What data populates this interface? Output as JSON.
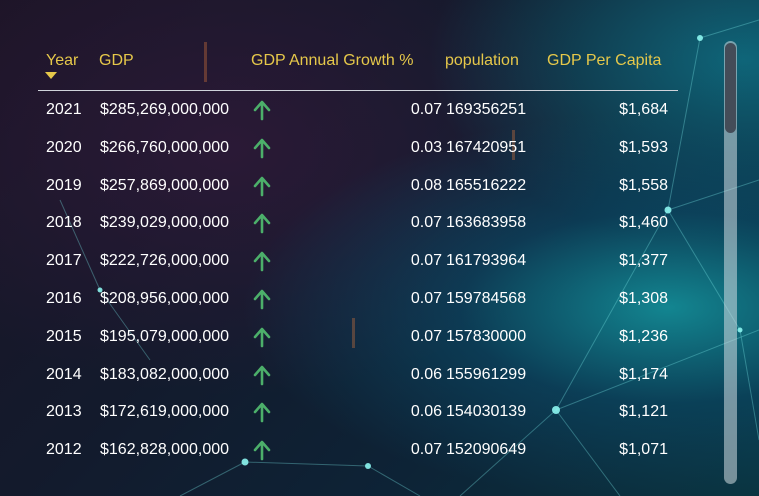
{
  "columns": {
    "year": "Year",
    "gdp": "GDP",
    "growth": "GDP Annual Growth %",
    "population": "population",
    "per_capita": "GDP Per Capita"
  },
  "sort": {
    "column": "Year",
    "direction": "descending"
  },
  "trend_icon": "up-arrow-icon",
  "colors": {
    "header_text": "#e6c84a",
    "cell_text": "#ffffff",
    "trend_up": "#4caf6a"
  },
  "rows": [
    {
      "year": "2021",
      "gdp": "$285,269,000,000",
      "growth": "0.07",
      "population": "169356251",
      "per_capita": "$1,684"
    },
    {
      "year": "2020",
      "gdp": "$266,760,000,000",
      "growth": "0.03",
      "population": "167420951",
      "per_capita": "$1,593"
    },
    {
      "year": "2019",
      "gdp": "$257,869,000,000",
      "growth": "0.08",
      "population": "165516222",
      "per_capita": "$1,558"
    },
    {
      "year": "2018",
      "gdp": "$239,029,000,000",
      "growth": "0.07",
      "population": "163683958",
      "per_capita": "$1,460"
    },
    {
      "year": "2017",
      "gdp": "$222,726,000,000",
      "growth": "0.07",
      "population": "161793964",
      "per_capita": "$1,377"
    },
    {
      "year": "2016",
      "gdp": "$208,956,000,000",
      "growth": "0.07",
      "population": "159784568",
      "per_capita": "$1,308"
    },
    {
      "year": "2015",
      "gdp": "$195,079,000,000",
      "growth": "0.07",
      "population": "157830000",
      "per_capita": "$1,236"
    },
    {
      "year": "2014",
      "gdp": "$183,082,000,000",
      "growth": "0.06",
      "population": "155961299",
      "per_capita": "$1,174"
    },
    {
      "year": "2013",
      "gdp": "$172,619,000,000",
      "growth": "0.06",
      "population": "154030139",
      "per_capita": "$1,121"
    },
    {
      "year": "2012",
      "gdp": "$162,828,000,000",
      "growth": "0.07",
      "population": "152090649",
      "per_capita": "$1,071"
    }
  ]
}
